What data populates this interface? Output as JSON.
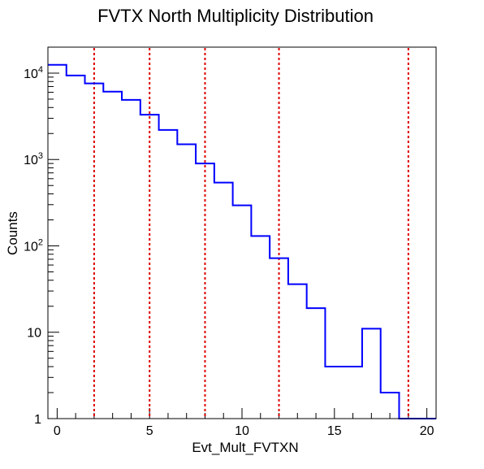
{
  "chart_data": {
    "type": "histogram",
    "title": "FVTX North Multiplicity Distribution",
    "xlabel": "Evt_Mult_FVTXN",
    "ylabel": "Counts",
    "xlim": [
      -0.5,
      20.5
    ],
    "ylim": [
      1,
      20000
    ],
    "yscale": "log",
    "grid": false,
    "legend": "none",
    "bins": {
      "edges": [
        -0.5,
        0.5,
        1.5,
        2.5,
        3.5,
        4.5,
        5.5,
        6.5,
        7.5,
        8.5,
        9.5,
        10.5,
        11.5,
        12.5,
        13.5,
        14.5,
        15.5,
        16.5,
        17.5,
        18.5,
        19.5,
        20.5
      ],
      "counts": [
        12500,
        9400,
        7600,
        6100,
        4900,
        3300,
        2200,
        1500,
        900,
        540,
        295,
        130,
        72,
        36,
        19,
        4,
        4,
        11,
        2,
        0,
        0
      ]
    },
    "x_ticks": [
      {
        "value": 0,
        "label": "0"
      },
      {
        "value": 5,
        "label": "5"
      },
      {
        "value": 10,
        "label": "10"
      },
      {
        "value": 15,
        "label": "15"
      },
      {
        "value": 20,
        "label": "20"
      }
    ],
    "y_ticks": [
      {
        "value": 1,
        "label": "1"
      },
      {
        "value": 10,
        "label": "10"
      },
      {
        "value": 100,
        "label": "10",
        "exp": "2"
      },
      {
        "value": 1000,
        "label": "10",
        "exp": "3"
      },
      {
        "value": 10000,
        "label": "10",
        "exp": "4"
      }
    ],
    "vertical_lines": [
      2,
      5,
      8,
      12,
      19
    ],
    "colors": {
      "histogram": "#0000ff",
      "vertical_lines": "#dd0000",
      "axes": "#000000"
    }
  }
}
